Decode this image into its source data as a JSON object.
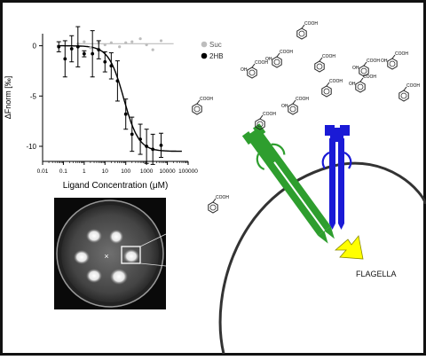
{
  "chart_data": {
    "type": "scatter",
    "xlabel": "Ligand Concentration (μM)",
    "ylabel": "ΔFnorm [‰]",
    "x_scale": "log",
    "xlim": [
      0.01,
      100000
    ],
    "ylim": [
      -11.5,
      1.2
    ],
    "x_ticks": [
      "0.01",
      "0.1",
      "1",
      "10",
      "100",
      "1000",
      "10000",
      "100000"
    ],
    "y_ticks": [
      "0",
      "-5",
      "-10"
    ],
    "y_tick_values": [
      0,
      -5,
      -10
    ],
    "legend": [
      {
        "label": "Suc",
        "color": "#bdbdbd"
      },
      {
        "label": "2HB",
        "color": "#000000"
      }
    ],
    "legend_position": "top-right",
    "series": [
      {
        "name": "2HB",
        "color": "#000000",
        "points": [
          {
            "x": 0.06,
            "y": -0.1,
            "err": 0.5
          },
          {
            "x": 0.12,
            "y": -1.3,
            "err": 1.8
          },
          {
            "x": 0.25,
            "y": -0.3,
            "err": 1.3
          },
          {
            "x": 0.5,
            "y": -0.1,
            "err": 2.0
          },
          {
            "x": 1.0,
            "y": -0.8,
            "err": 0.3
          },
          {
            "x": 2.5,
            "y": -0.8,
            "err": 2.3
          },
          {
            "x": 5,
            "y": -0.4,
            "err": 0.9
          },
          {
            "x": 10,
            "y": -1.6,
            "err": 1.0
          },
          {
            "x": 20,
            "y": -2.0,
            "err": 1.3
          },
          {
            "x": 40,
            "y": -3.5,
            "err": 2.0
          },
          {
            "x": 100,
            "y": -6.8,
            "err": 1.5
          },
          {
            "x": 200,
            "y": -8.8,
            "err": 1.7
          },
          {
            "x": 500,
            "y": -9.3,
            "err": 1.5
          },
          {
            "x": 1000,
            "y": -10.0,
            "err": 1.7
          },
          {
            "x": 2000,
            "y": -10.3,
            "err": 1.5
          },
          {
            "x": 5000,
            "y": -9.9,
            "err": 1.2
          }
        ],
        "fit": {
          "top": 0.0,
          "bottom": -10.5,
          "ec50": 80,
          "hill": 1.2
        }
      },
      {
        "name": "Suc",
        "color": "#bdbdbd",
        "points": [
          {
            "x": 0.5,
            "y": 0.2
          },
          {
            "x": 1,
            "y": 0.4
          },
          {
            "x": 2,
            "y": -0.2
          },
          {
            "x": 5,
            "y": 0.3
          },
          {
            "x": 10,
            "y": 0.1
          },
          {
            "x": 20,
            "y": 0.3
          },
          {
            "x": 50,
            "y": -0.1
          },
          {
            "x": 100,
            "y": 0.3
          },
          {
            "x": 200,
            "y": 0.4
          },
          {
            "x": 500,
            "y": 0.7
          },
          {
            "x": 1000,
            "y": 0.1
          },
          {
            "x": 2000,
            "y": -0.4
          },
          {
            "x": 5000,
            "y": 0.5
          }
        ],
        "fit_level": 0.2
      }
    ]
  },
  "diagram": {
    "flagella_label": "FLAGELLA",
    "ligand_label": "COOH",
    "ligand_oh_label": "OH",
    "receptor_green_color": "#2e9e2e",
    "receptor_blue_color": "#1a1ad6",
    "arrow_color": "#ffff00",
    "cell_outline_color": "#333333"
  },
  "plate": {
    "center_marker": "×"
  }
}
